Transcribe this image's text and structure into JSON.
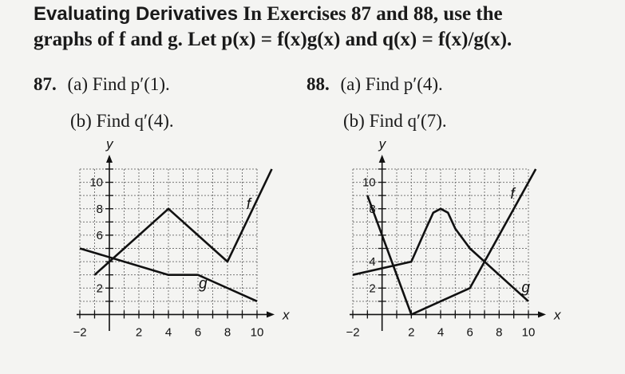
{
  "heading": {
    "section_title": "Evaluating Derivatives",
    "instructions_line1": "In Exercises 87 and 88, use the",
    "instructions_line2": "graphs of f and g. Let p(x) = f(x)g(x) and q(x) = f(x)/g(x)."
  },
  "exercises": [
    {
      "number": "87.",
      "part_a": "(a) Find p′(1).",
      "part_b": "(b) Find q′(4)."
    },
    {
      "number": "88.",
      "part_a": "(a) Find p′(4).",
      "part_b": "(b) Find q′(7)."
    }
  ],
  "chart_data": [
    {
      "type": "line",
      "xlabel": "x",
      "ylabel": "y",
      "xlim": [
        -2,
        10
      ],
      "ylim": [
        -1,
        11
      ],
      "x_ticks": [
        "−2",
        "2",
        "4",
        "6",
        "8",
        "10"
      ],
      "y_ticks": [
        "2",
        "6",
        "8",
        "10"
      ],
      "grid": true,
      "series": [
        {
          "name": "f",
          "x": [
            -1,
            4,
            8,
            11
          ],
          "y": [
            3,
            8,
            4,
            11
          ]
        },
        {
          "name": "g",
          "x": [
            -2,
            4,
            6,
            10
          ],
          "y": [
            5,
            3,
            3,
            1
          ]
        }
      ]
    },
    {
      "type": "line",
      "xlabel": "x",
      "ylabel": "y",
      "xlim": [
        -2,
        10
      ],
      "ylim": [
        -1,
        11
      ],
      "x_ticks": [
        "−2",
        "2",
        "4",
        "6",
        "8",
        "10"
      ],
      "y_ticks": [
        "2",
        "4",
        "8",
        "10"
      ],
      "grid": true,
      "series": [
        {
          "name": "f",
          "x": [
            -1,
            2,
            6,
            10.5
          ],
          "y": [
            9,
            0,
            2,
            11
          ]
        },
        {
          "name": "g",
          "x": [
            -2,
            2,
            3,
            3.5,
            4,
            4.5,
            5,
            6,
            8,
            10
          ],
          "y": [
            3,
            4,
            6.5,
            7.7,
            8,
            7.7,
            6.5,
            5,
            3,
            1
          ]
        }
      ]
    }
  ]
}
